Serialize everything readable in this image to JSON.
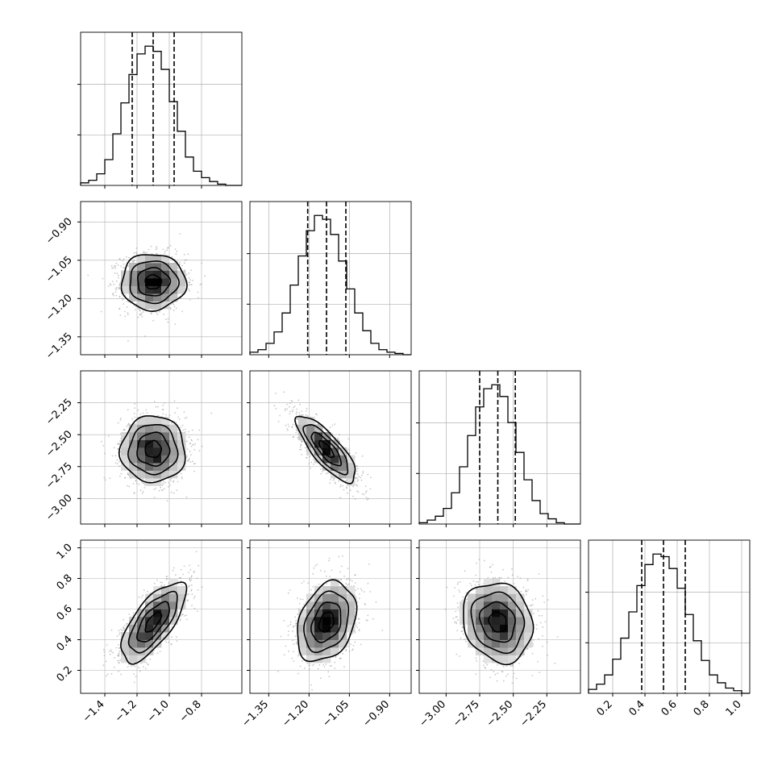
{
  "chart_data": {
    "type": "corner",
    "parameters": [
      {
        "range": [
          -1.55,
          -0.55
        ],
        "ticks": [
          -1.4,
          -1.2,
          -1.0,
          -0.8
        ],
        "tick_labels": [
          "−1.4",
          "−1.2",
          "−1.0",
          "−0.8"
        ],
        "quantiles": [
          -1.23,
          -1.1,
          -0.97
        ],
        "hist_centers": [
          -1.525,
          -1.475,
          -1.425,
          -1.375,
          -1.325,
          -1.275,
          -1.225,
          -1.175,
          -1.125,
          -1.075,
          -1.025,
          -0.975,
          -0.925,
          -0.875,
          -0.825,
          -0.775,
          -0.725,
          -0.675,
          -0.625,
          -0.575
        ],
        "hist": [
          2,
          4,
          9,
          20,
          40,
          64,
          86,
          102,
          108,
          104,
          90,
          65,
          42,
          22,
          11,
          6,
          3,
          1,
          0,
          0
        ]
      },
      {
        "range": [
          -1.42,
          -0.82
        ],
        "ticks": [
          -1.35,
          -1.2,
          -1.05,
          -0.9
        ],
        "tick_labels": [
          "−1.35",
          "−1.20",
          "−1.05",
          "−0.90"
        ],
        "quantiles": [
          -1.205,
          -1.135,
          -1.063
        ],
        "hist_centers": [
          -1.405,
          -1.375,
          -1.345,
          -1.315,
          -1.285,
          -1.255,
          -1.225,
          -1.195,
          -1.165,
          -1.135,
          -1.105,
          -1.075,
          -1.045,
          -1.015,
          -0.985,
          -0.955,
          -0.925,
          -0.895,
          -0.865,
          -0.835
        ],
        "hist": [
          2,
          4,
          9,
          18,
          33,
          55,
          78,
          98,
          110,
          107,
          95,
          74,
          52,
          33,
          19,
          9,
          4,
          2,
          1,
          0
        ]
      },
      {
        "range": [
          -3.2,
          -2.0
        ],
        "ticks": [
          -3.0,
          -2.75,
          -2.5,
          -2.25
        ],
        "tick_labels": [
          "−3.00",
          "−2.75",
          "−2.50",
          "−2.25"
        ],
        "quantiles": [
          -2.75,
          -2.615,
          -2.485
        ],
        "hist_centers": [
          -3.17,
          -3.11,
          -3.05,
          -2.99,
          -2.93,
          -2.87,
          -2.81,
          -2.75,
          -2.69,
          -2.63,
          -2.57,
          -2.51,
          -2.45,
          -2.39,
          -2.33,
          -2.27,
          -2.21,
          -2.15,
          -2.09,
          -2.03
        ],
        "hist": [
          1,
          3,
          6,
          12,
          24,
          44,
          68,
          90,
          104,
          107,
          98,
          78,
          55,
          34,
          18,
          8,
          4,
          1,
          0,
          0
        ]
      },
      {
        "range": [
          0.05,
          1.05
        ],
        "ticks": [
          0.2,
          0.4,
          0.6,
          0.8,
          1.0
        ],
        "tick_labels": [
          "0.2",
          "0.4",
          "0.6",
          "0.8",
          "1.0"
        ],
        "quantiles": [
          0.38,
          0.515,
          0.65
        ],
        "hist_centers": [
          0.075,
          0.125,
          0.175,
          0.225,
          0.275,
          0.325,
          0.375,
          0.425,
          0.475,
          0.525,
          0.575,
          0.625,
          0.675,
          0.725,
          0.775,
          0.825,
          0.875,
          0.925,
          0.975,
          1.025
        ],
        "hist": [
          3,
          7,
          14,
          26,
          42,
          62,
          82,
          98,
          106,
          104,
          95,
          80,
          60,
          40,
          25,
          14,
          8,
          4,
          2,
          0
        ]
      }
    ],
    "pairs": [
      {
        "row": 1,
        "col": 0,
        "mean": [
          -1.1,
          -1.135
        ],
        "sd": [
          0.1,
          0.055
        ],
        "rho": 0.0
      },
      {
        "row": 2,
        "col": 0,
        "mean": [
          -1.1,
          -2.615
        ],
        "sd": [
          0.1,
          0.13
        ],
        "rho": 0.0
      },
      {
        "row": 2,
        "col": 1,
        "mean": [
          -1.135,
          -2.615
        ],
        "sd": [
          0.055,
          0.13
        ],
        "rho": -0.8
      },
      {
        "row": 3,
        "col": 0,
        "mean": [
          -1.1,
          0.515
        ],
        "sd": [
          0.1,
          0.13
        ],
        "rho": 0.7
      },
      {
        "row": 3,
        "col": 1,
        "mean": [
          -1.135,
          0.515
        ],
        "sd": [
          0.055,
          0.13
        ],
        "rho": 0.3
      },
      {
        "row": 3,
        "col": 2,
        "mean": [
          -2.615,
          0.515
        ],
        "sd": [
          0.13,
          0.13
        ],
        "rho": -0.15
      }
    ],
    "contour_levels_sigma": [
      0.5,
      1.0,
      1.5,
      2.0
    ],
    "grid": true,
    "colors": {
      "line": "#000000",
      "grid": "#b0b0b0",
      "scatter": "#9a9a9a",
      "density_dark": "#000000",
      "density_light": "#ffffff"
    }
  }
}
